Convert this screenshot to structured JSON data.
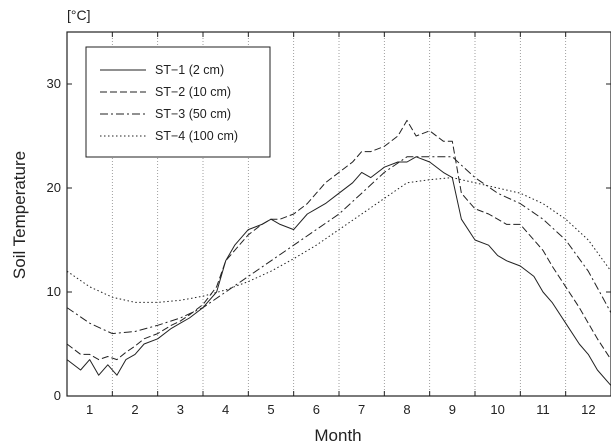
{
  "chart_data": {
    "type": "line",
    "unit_label": "[°C]",
    "xlabel": "Month",
    "ylabel": "Soil Temperature",
    "xlim": [
      0.5,
      12.5
    ],
    "ylim": [
      0,
      35
    ],
    "y_ticks": [
      0,
      10,
      20,
      30
    ],
    "x_tick_labels": [
      "1",
      "2",
      "3",
      "4",
      "5",
      "6",
      "7",
      "8",
      "9",
      "10",
      "11",
      "12"
    ],
    "month_boundaries": [
      1.5,
      2.5,
      3.5,
      4.5,
      5.5,
      6.5,
      7.5,
      8.5,
      9.5,
      10.5,
      11.5
    ],
    "grid": "vertical dotted lines at month boundaries",
    "legend_position": "top-left",
    "series": [
      {
        "name": "ST−1 (2 cm)",
        "style": "solid",
        "x": [
          0.5,
          0.8,
          1.0,
          1.2,
          1.4,
          1.6,
          1.8,
          2.0,
          2.2,
          2.5,
          2.8,
          3.0,
          3.2,
          3.5,
          3.8,
          4.0,
          4.2,
          4.5,
          4.8,
          5.0,
          5.2,
          5.5,
          5.8,
          6.0,
          6.2,
          6.5,
          6.8,
          7.0,
          7.2,
          7.5,
          7.8,
          8.0,
          8.2,
          8.5,
          8.8,
          9.0,
          9.2,
          9.5,
          9.8,
          10.0,
          10.2,
          10.5,
          10.8,
          11.0,
          11.2,
          11.5,
          11.8,
          12.0,
          12.2,
          12.5
        ],
        "y": [
          3.5,
          2.5,
          3.5,
          2.0,
          3.0,
          2.0,
          3.5,
          4.0,
          5.0,
          5.5,
          6.5,
          7.0,
          7.5,
          8.5,
          10.0,
          13.0,
          14.5,
          16.0,
          16.5,
          17.0,
          16.5,
          16.0,
          17.5,
          18.0,
          18.5,
          19.5,
          20.5,
          21.5,
          21.0,
          22.0,
          22.5,
          22.5,
          23.0,
          22.5,
          21.5,
          21.0,
          17.0,
          15.0,
          14.5,
          13.5,
          13.0,
          12.5,
          11.5,
          10.0,
          9.0,
          7.0,
          5.0,
          4.0,
          2.5,
          1.0
        ]
      },
      {
        "name": "ST−2 (10 cm)",
        "style": "dashed",
        "x": [
          0.5,
          0.8,
          1.0,
          1.2,
          1.4,
          1.6,
          1.8,
          2.0,
          2.2,
          2.5,
          2.8,
          3.0,
          3.2,
          3.5,
          3.8,
          4.0,
          4.2,
          4.5,
          4.8,
          5.0,
          5.2,
          5.5,
          5.8,
          6.0,
          6.2,
          6.5,
          6.8,
          7.0,
          7.2,
          7.5,
          7.8,
          8.0,
          8.2,
          8.5,
          8.8,
          9.0,
          9.2,
          9.5,
          9.8,
          10.0,
          10.2,
          10.5,
          10.8,
          11.0,
          11.2,
          11.5,
          11.8,
          12.0,
          12.2,
          12.5
        ],
        "y": [
          5.0,
          4.0,
          4.0,
          3.5,
          3.8,
          3.5,
          4.2,
          4.8,
          5.5,
          6.0,
          6.8,
          7.2,
          7.8,
          8.8,
          10.5,
          13.0,
          14.0,
          15.5,
          16.5,
          17.0,
          17.0,
          17.5,
          18.5,
          19.5,
          20.5,
          21.5,
          22.5,
          23.5,
          23.5,
          24.0,
          25.0,
          26.5,
          25.0,
          25.5,
          24.5,
          24.5,
          19.5,
          18.0,
          17.5,
          17.0,
          16.5,
          16.5,
          15.0,
          14.0,
          12.5,
          10.5,
          8.5,
          7.0,
          5.5,
          3.5
        ]
      },
      {
        "name": "ST−3 (50 cm)",
        "style": "dashdot",
        "x": [
          0.5,
          1.0,
          1.5,
          2.0,
          2.5,
          3.0,
          3.5,
          4.0,
          4.5,
          5.0,
          5.5,
          6.0,
          6.5,
          7.0,
          7.5,
          8.0,
          8.5,
          9.0,
          9.5,
          10.0,
          10.5,
          11.0,
          11.5,
          12.0,
          12.5
        ],
        "y": [
          8.5,
          7.0,
          6.0,
          6.2,
          6.8,
          7.5,
          8.5,
          10.0,
          11.5,
          13.0,
          14.5,
          16.0,
          17.5,
          19.5,
          21.5,
          23.0,
          23.0,
          23.0,
          21.0,
          19.5,
          18.5,
          17.0,
          15.0,
          12.0,
          8.0
        ]
      },
      {
        "name": "ST−4 (100 cm)",
        "style": "dotted",
        "x": [
          0.5,
          1.0,
          1.5,
          2.0,
          2.5,
          3.0,
          3.5,
          4.0,
          4.5,
          5.0,
          5.5,
          6.0,
          6.5,
          7.0,
          7.5,
          8.0,
          8.5,
          9.0,
          9.5,
          10.0,
          10.5,
          11.0,
          11.5,
          12.0,
          12.5
        ],
        "y": [
          12.0,
          10.5,
          9.5,
          9.0,
          9.0,
          9.2,
          9.6,
          10.2,
          11.0,
          12.0,
          13.2,
          14.5,
          16.0,
          17.5,
          19.0,
          20.5,
          20.8,
          21.0,
          20.5,
          20.0,
          19.5,
          18.5,
          17.0,
          15.0,
          12.0
        ]
      }
    ]
  }
}
